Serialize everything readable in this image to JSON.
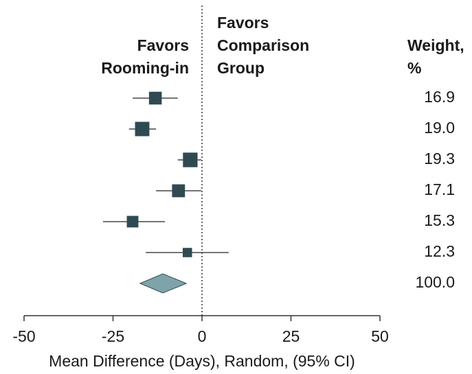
{
  "chart_data": {
    "type": "forest",
    "left_label": [
      "Favors",
      "Rooming-in"
    ],
    "right_label": [
      "Favors",
      "Comparison",
      "Group"
    ],
    "weight_header": [
      "Weight,",
      "%"
    ],
    "xlabel": "Mean Difference (Days), Random, (95% CI)",
    "values": [
      -13.1,
      -16.8,
      -3.3,
      -6.6,
      -19.5,
      -4.1
    ],
    "lower": [
      -19.5,
      -20.5,
      -6.8,
      -12.9,
      -27.8,
      -15.8
    ],
    "upper": [
      -6.8,
      -12.9,
      -0.2,
      -0.2,
      -10.4,
      7.5
    ],
    "weights": [
      16.9,
      19,
      19.3,
      17.1,
      15.3,
      12.3
    ],
    "weight_labels": [
      "16.9",
      "19.0",
      "19.3",
      "17.1",
      "15.3",
      "12.3"
    ],
    "pooled": {
      "value": -11.0,
      "lower": -17.4,
      "upper": -4.4,
      "weight": 100,
      "weight_label": "100.0"
    },
    "color": "#2f4a52",
    "pooled_color": "#7fa3aa",
    "xlim": [
      -50,
      50
    ],
    "xticks": [
      -50,
      -25,
      0,
      25,
      50
    ]
  }
}
